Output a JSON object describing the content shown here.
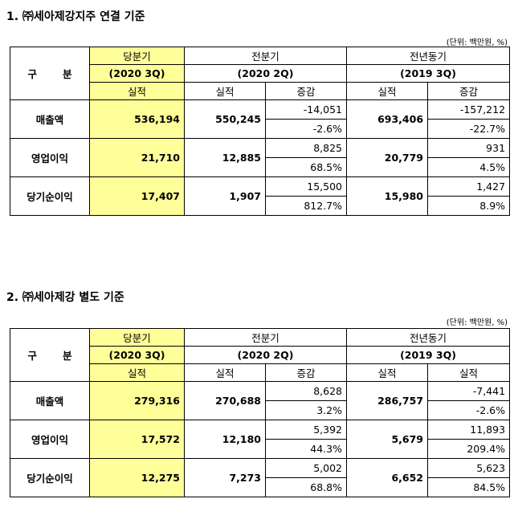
{
  "section1": {
    "title": "1. ㈜세아제강지주 연결 기준",
    "unit": "(단위: 백만원, %)",
    "header": {
      "gubun_a": "구",
      "gubun_b": "분",
      "current_label": "당분기",
      "current_period": "(2020 3Q)",
      "prev_label": "전분기",
      "prev_period": "(2020 2Q)",
      "yoy_label": "전년동기",
      "yoy_period": "(2019 3Q)",
      "actual": "실적",
      "change": "증감"
    },
    "rows": [
      {
        "label": "매출액",
        "current": "536,194",
        "prev": "550,245",
        "prev_change": "-14,051",
        "prev_change_pct": "-2.6%",
        "yoy": "693,406",
        "yoy_change": "-157,212",
        "yoy_change_pct": "-22.7%"
      },
      {
        "label": "영업이익",
        "current": "21,710",
        "prev": "12,885",
        "prev_change": "8,825",
        "prev_change_pct": "68.5%",
        "yoy": "20,779",
        "yoy_change": "931",
        "yoy_change_pct": "4.5%"
      },
      {
        "label": "당기순이익",
        "current": "17,407",
        "prev": "1,907",
        "prev_change": "15,500",
        "prev_change_pct": "812.7%",
        "yoy": "15,980",
        "yoy_change": "1,427",
        "yoy_change_pct": "8.9%"
      }
    ]
  },
  "section2": {
    "title": "2. ㈜세아제강 별도 기준",
    "unit": "(단위: 백만원, %)",
    "header": {
      "gubun_a": "구",
      "gubun_b": "분",
      "current_label": "당분기",
      "current_period": "(2020 3Q)",
      "prev_label": "전분기",
      "prev_period": "(2020 2Q)",
      "yoy_label": "전년동기",
      "yoy_period": "(2019 3Q)",
      "actual": "실적",
      "change": "증감",
      "yoy_change": "실적"
    },
    "rows": [
      {
        "label": "매출액",
        "current": "279,316",
        "prev": "270,688",
        "prev_change": "8,628",
        "prev_change_pct": "3.2%",
        "yoy": "286,757",
        "yoy_change": "-7,441",
        "yoy_change_pct": "-2.6%"
      },
      {
        "label": "영업이익",
        "current": "17,572",
        "prev": "12,180",
        "prev_change": "5,392",
        "prev_change_pct": "44.3%",
        "yoy": "5,679",
        "yoy_change": "11,893",
        "yoy_change_pct": "209.4%"
      },
      {
        "label": "당기순이익",
        "current": "12,275",
        "prev": "7,273",
        "prev_change": "5,002",
        "prev_change_pct": "68.8%",
        "yoy": "6,652",
        "yoy_change": "5,623",
        "yoy_change_pct": "84.5%"
      }
    ]
  }
}
